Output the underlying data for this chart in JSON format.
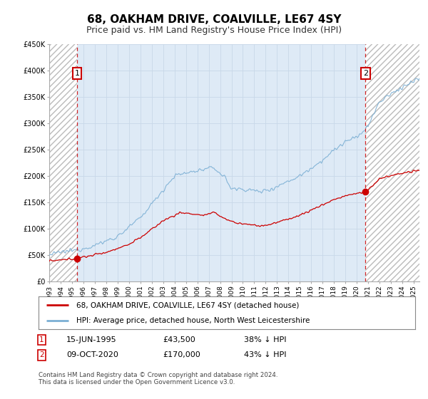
{
  "title": "68, OAKHAM DRIVE, COALVILLE, LE67 4SY",
  "subtitle": "Price paid vs. HM Land Registry's House Price Index (HPI)",
  "legend_line1": "68, OAKHAM DRIVE, COALVILLE, LE67 4SY (detached house)",
  "legend_line2": "HPI: Average price, detached house, North West Leicestershire",
  "annotation1_date": "15-JUN-1995",
  "annotation1_price": "£43,500",
  "annotation1_hpi": "38% ↓ HPI",
  "annotation2_date": "09-OCT-2020",
  "annotation2_price": "£170,000",
  "annotation2_hpi": "43% ↓ HPI",
  "footer": "Contains HM Land Registry data © Crown copyright and database right 2024.\nThis data is licensed under the Open Government Licence v3.0.",
  "ylim": [
    0,
    450000
  ],
  "yticks": [
    0,
    50000,
    100000,
    150000,
    200000,
    250000,
    300000,
    350000,
    400000,
    450000
  ],
  "ytick_labels": [
    "£0",
    "£50K",
    "£100K",
    "£150K",
    "£200K",
    "£250K",
    "£300K",
    "£350K",
    "£400K",
    "£450K"
  ],
  "sale1_year": 1995.45,
  "sale1_price": 43500,
  "sale2_year": 2020.77,
  "sale2_price": 170000,
  "hpi_line_color": "#7bafd4",
  "price_line_color": "#cc0000",
  "sale_dot_color": "#cc0000",
  "vline_color": "#cc0000",
  "grid_color": "#c8d8e8",
  "background_color": "#deeaf6",
  "title_fontsize": 11,
  "subtitle_fontsize": 9,
  "axis_fontsize": 7,
  "annotation_box_color": "#cc0000",
  "xmin": 1993,
  "xmax": 2025.5
}
